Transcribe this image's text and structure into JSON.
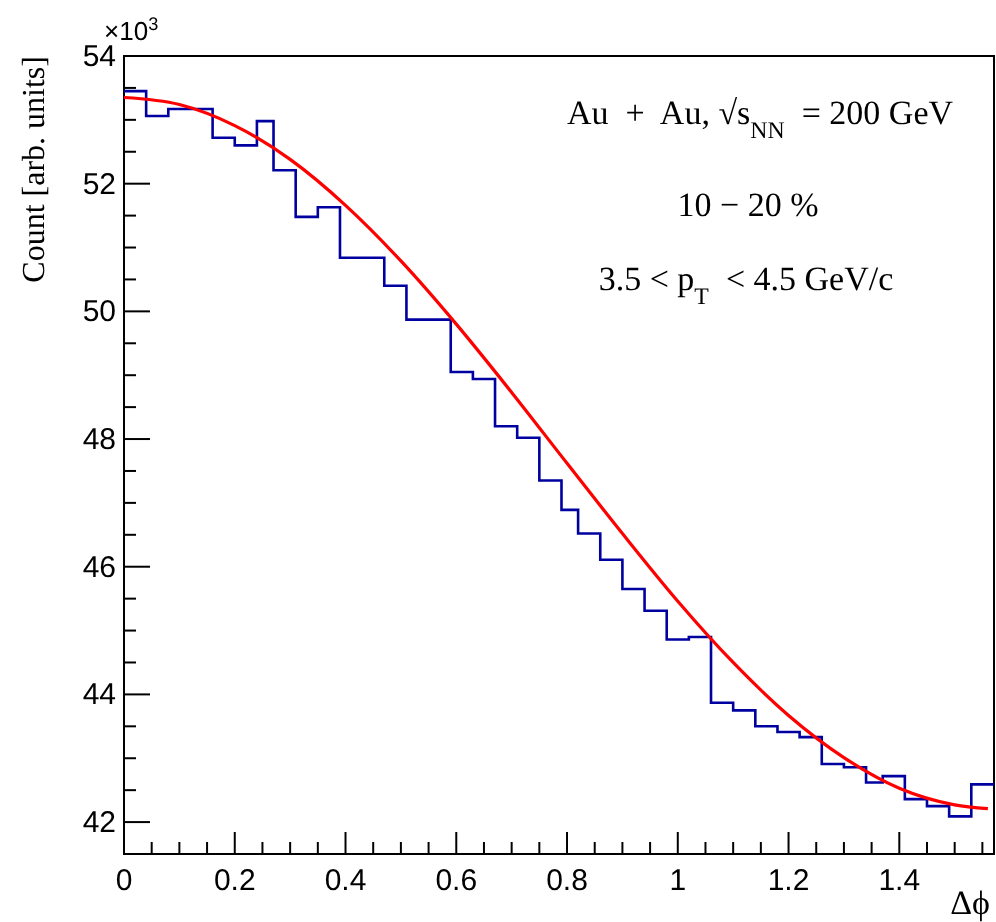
{
  "chart_data": {
    "type": "line",
    "xlabel": "Δϕ",
    "ylabel": "Count [arb. units]",
    "annotations": [
      "×10$^{3}$",
      "Au  +  Au, √s$_{NN}$ = 200 GeV",
      "10 − 20 %",
      "3.5 < p$_{T}$ < 4.5 GeV/c"
    ],
    "series": [
      {
        "type": "step",
        "color": "#0000a0",
        "x": [
          0,
          0.04,
          0.08,
          0.12,
          0.16,
          0.2,
          0.24,
          0.27,
          0.31,
          0.35,
          0.39,
          0.43,
          0.47,
          0.51,
          0.55,
          0.59,
          0.63,
          0.67,
          0.71,
          0.75,
          0.79,
          0.82,
          0.86,
          0.9,
          0.94,
          0.98,
          1.02,
          1.06,
          1.1,
          1.14,
          1.18,
          1.22,
          1.26,
          1.3,
          1.34,
          1.37,
          1.41,
          1.45,
          1.49,
          1.53,
          1.571
        ],
        "values": [
          53.45,
          53.06,
          53.17,
          53.17,
          52.72,
          52.6,
          52.98,
          52.21,
          51.48,
          51.63,
          50.84,
          50.84,
          50.4,
          49.87,
          49.87,
          49.05,
          48.94,
          48.2,
          48.02,
          47.35,
          46.89,
          46.52,
          46.11,
          45.65,
          45.31,
          44.86,
          44.9,
          43.87,
          43.75,
          43.5,
          43.41,
          43.33,
          42.91,
          42.86,
          42.62,
          42.72,
          42.36,
          42.25,
          42.09,
          42.59,
          42.59
        ]
      },
      {
        "type": "line",
        "color": "#ff0000",
        "x": [
          0,
          0.1,
          0.2,
          0.3,
          0.4,
          0.5,
          0.6,
          0.7,
          0.8,
          0.9,
          1,
          1.1,
          1.2,
          1.3,
          1.4,
          1.5,
          1.56
        ],
        "values": [
          53.35,
          53.24,
          52.91,
          52.38,
          51.66,
          50.79,
          49.8,
          48.73,
          47.62,
          46.52,
          45.46,
          44.5,
          43.67,
          43.01,
          42.53,
          42.27,
          42.21
        ]
      }
    ],
    "xlim": [
      0,
      1.571
    ],
    "ylim": [
      41.5,
      54
    ],
    "xticks": [
      0,
      {
        "value": 0.05,
        "label": null
      },
      {
        "value": 0.1,
        "label": null
      },
      {
        "value": 0.15,
        "label": null
      },
      0.2,
      {
        "value": 0.25,
        "label": null
      },
      {
        "value": 0.3,
        "label": null
      },
      {
        "value": 0.35,
        "label": null
      },
      0.4,
      {
        "value": 0.45,
        "label": null
      },
      {
        "value": 0.5,
        "label": null
      },
      {
        "value": 0.55,
        "label": null
      },
      0.6,
      {
        "value": 0.65,
        "label": null
      },
      {
        "value": 0.7,
        "label": null
      },
      {
        "value": 0.75,
        "label": null
      },
      0.8,
      {
        "value": 0.85,
        "label": null
      },
      {
        "value": 0.9,
        "label": null
      },
      {
        "value": 0.95,
        "label": null
      },
      1,
      {
        "value": 1.05,
        "label": null
      },
      {
        "value": 1.1,
        "label": null
      },
      {
        "value": 1.15,
        "label": null
      },
      1.2,
      {
        "value": 1.25,
        "label": null
      },
      {
        "value": 1.3,
        "label": null
      },
      {
        "value": 1.35,
        "label": null
      },
      1.4,
      {
        "value": 1.45,
        "label": null
      },
      {
        "value": 1.5,
        "label": null
      },
      {
        "value": 1.55,
        "label": null
      }
    ],
    "yticks": [
      42,
      {
        "value": 42.5,
        "label": null
      },
      {
        "value": 43,
        "label": null
      },
      {
        "value": 43.5,
        "label": null
      },
      44,
      {
        "value": 44.5,
        "label": null
      },
      {
        "value": 45,
        "label": null
      },
      {
        "value": 45.5,
        "label": null
      },
      46,
      {
        "value": 46.5,
        "label": null
      },
      {
        "value": 47,
        "label": null
      },
      {
        "value": 47.5,
        "label": null
      },
      48,
      {
        "value": 48.5,
        "label": null
      },
      {
        "value": 49,
        "label": null
      },
      {
        "value": 49.5,
        "label": null
      },
      50,
      {
        "value": 50.5,
        "label": null
      },
      {
        "value": 51,
        "label": null
      },
      {
        "value": 51.5,
        "label": null
      },
      52,
      {
        "value": 52.5,
        "label": null
      },
      {
        "value": 53,
        "label": null
      },
      {
        "value": 53.5,
        "label": null
      },
      54
    ],
    "grid": false
  }
}
